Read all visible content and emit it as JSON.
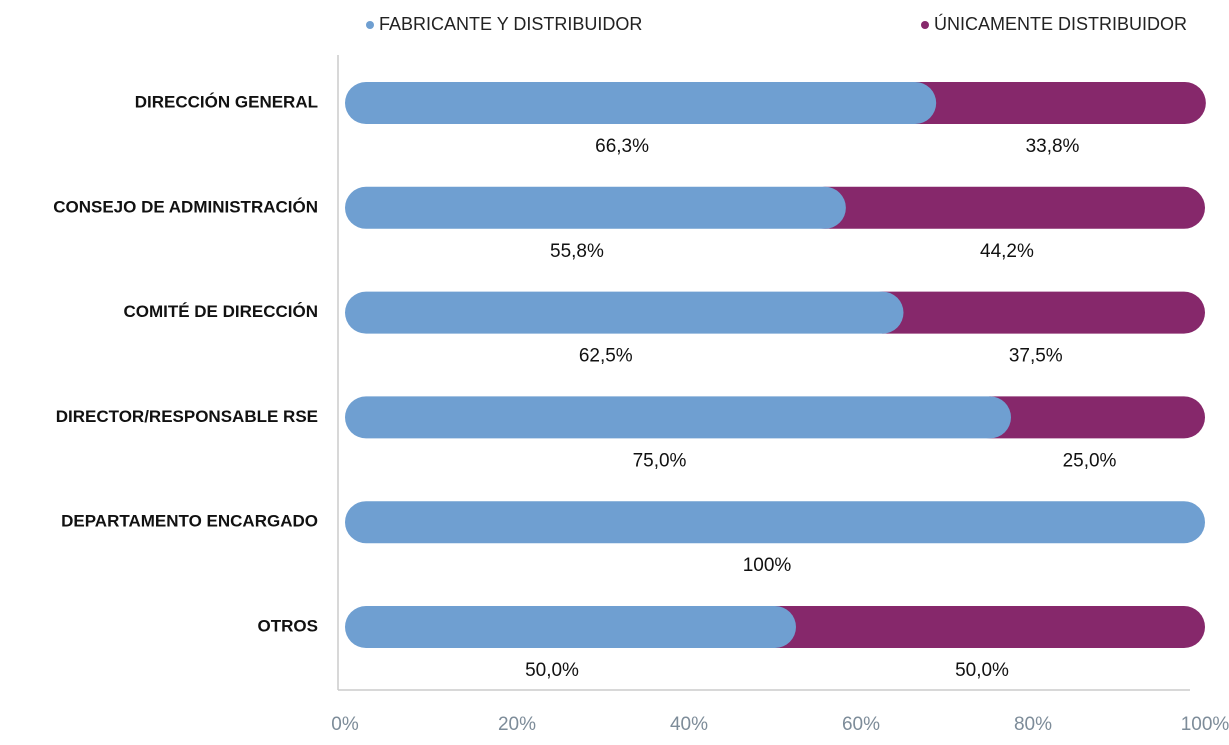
{
  "chart_data": {
    "type": "stacked_bar_horizontal",
    "categories": [
      "DIRECCIÓN GENERAL",
      "CONSEJO DE ADMINISTRACIÓN",
      "COMITÉ DE DIRECCIÓN",
      "DIRECTOR/RESPONSABLE RSE",
      "DEPARTAMENTO ENCARGADO",
      "OTROS"
    ],
    "series": [
      {
        "name": "FABRICANTE Y DISTRIBUIDOR",
        "color": "#6f9fd1",
        "values": [
          66.3,
          55.8,
          62.5,
          75.0,
          100,
          50.0
        ],
        "value_labels": [
          "66,3%",
          "55,8%",
          "62,5%",
          "75,0%",
          "100%",
          "50,0%"
        ]
      },
      {
        "name": "ÚNICAMENTE DISTRIBUIDOR",
        "color": "#86286b",
        "values": [
          33.8,
          44.2,
          37.5,
          25.0,
          null,
          50.0
        ],
        "value_labels": [
          "33,8%",
          "44,2%",
          "37,5%",
          "25,0%",
          null,
          "50,0%"
        ]
      }
    ],
    "xlim": [
      0,
      100
    ],
    "xticks": [
      {
        "value": 0,
        "label": "0%"
      },
      {
        "value": 20,
        "label": "20%"
      },
      {
        "value": 40,
        "label": "40%"
      },
      {
        "value": 60,
        "label": "60%"
      },
      {
        "value": 80,
        "label": "80%"
      },
      {
        "value": 100,
        "label": "100%"
      }
    ],
    "legend": "top"
  }
}
